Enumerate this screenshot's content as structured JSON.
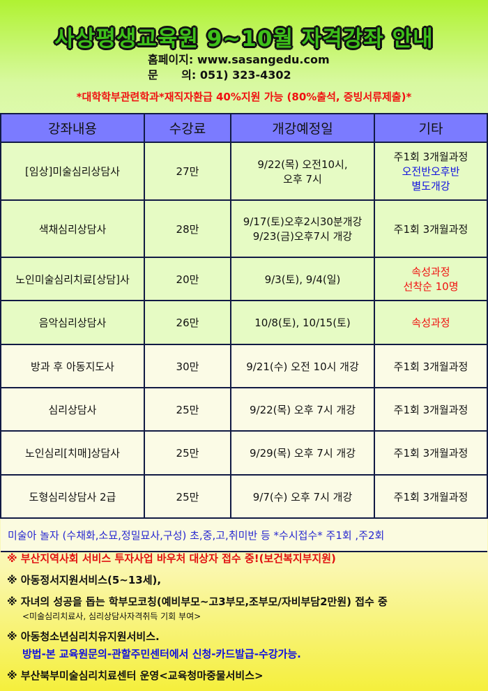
{
  "header": {
    "title": "사상평생교육원 9~10월 자격강좌 안내",
    "homepage": "홈페이지: www.sasangedu.com",
    "contact": "문      의: 051) 323-4302",
    "notice": "*대학학부관련학과*재직자환급 40%지원 가능 (80%출석, 증빙서류제출)*"
  },
  "table": {
    "headers": [
      "강좌내용",
      "수강료",
      "개강예정일",
      "기타"
    ],
    "rows": [
      {
        "course": "[임상]미술심리상담사",
        "fee": "27만",
        "date": [
          "9/22(목) 오전10시,",
          "오후 7시"
        ],
        "etc": [
          "주1회 3개월과정",
          "오전반오후반",
          "별도개강"
        ],
        "etc_colors": [
          "black",
          "blue",
          "blue"
        ]
      },
      {
        "course": "색채심리상담사",
        "fee": "28만",
        "date": [
          "9/17(토)오후2시30분개강",
          "9/23(금)오후7시 개강"
        ],
        "etc": [
          "주1회 3개월과정"
        ],
        "etc_colors": [
          "black"
        ]
      },
      {
        "course": "노인미술심리치료[상담]사",
        "fee": "20만",
        "date": [
          "9/3(토), 9/4(일)"
        ],
        "etc": [
          "속성과정",
          "선착순 10명"
        ],
        "etc_colors": [
          "red",
          "red"
        ]
      },
      {
        "course": "음악심리상담사",
        "fee": "26만",
        "date": [
          "10/8(토), 10/15(토)"
        ],
        "etc": [
          "속성과정"
        ],
        "etc_colors": [
          "red"
        ]
      },
      {
        "course": "방과 후 아동지도사",
        "fee": "30만",
        "date": [
          "9/21(수) 오전 10시 개강"
        ],
        "etc": [
          "주1회 3개월과정"
        ],
        "etc_colors": [
          "black"
        ]
      },
      {
        "course": "심리상담사",
        "fee": "25만",
        "date": [
          "9/22(목) 오후 7시 개강"
        ],
        "etc": [
          "주1회 3개월과정"
        ],
        "etc_colors": [
          "black"
        ]
      },
      {
        "course": "노인심리[치매]상담사",
        "fee": "25만",
        "date": [
          "9/29(목) 오후 7시 개강"
        ],
        "etc": [
          "주1회 3개월과정"
        ],
        "etc_colors": [
          "black"
        ]
      },
      {
        "course": "도형심리상담사 2급",
        "fee": "25만",
        "date": [
          "9/7(수) 오후 7시 개강"
        ],
        "etc": [
          "주1회 3개월과정"
        ],
        "etc_colors": [
          "black"
        ]
      }
    ],
    "span_row": "미술아 놀자 (수채화,소묘,정밀묘사,구성) 초,중,고,취미반 등 *수시접수* 주1회 ,주2회"
  },
  "notes": [
    {
      "text": "※ 부산지역사회 서비스 투자사업 바우처 대상자 접수 중!(보건복지부지원)",
      "color": "red"
    },
    {
      "text": "※ 아동정서지원서비스(5~13세),"
    },
    {
      "text": "※ 자녀의 성공을 돕는 학부모코칭(예비부모~고3부모,조부모/자비부담2만원) 접수 중",
      "sub": "<미술심리치료사, 심리상담사자격취득 기회 부여>"
    },
    {
      "text": "※ 아동청소년심리치유지원서비스.",
      "sub2": "방법-본 교육원문의-관할주민센터에서 신청-카드발급-수강가능."
    },
    {
      "text": "※ 부산북부미술심리치료센터 운영<교육청마중물서비스>"
    }
  ]
}
